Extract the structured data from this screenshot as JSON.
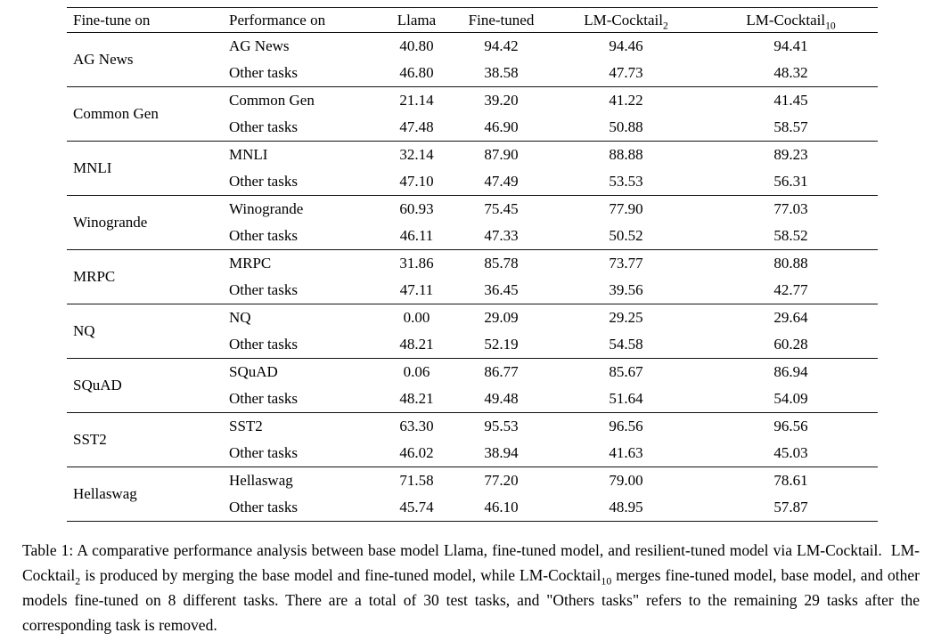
{
  "table": {
    "headers": [
      {
        "text": "Fine-tune on",
        "sub": ""
      },
      {
        "text": "Performance on",
        "sub": ""
      },
      {
        "text": "Llama",
        "sub": ""
      },
      {
        "text": "Fine-tuned",
        "sub": ""
      },
      {
        "text": "LM-Cocktail",
        "sub": "2"
      },
      {
        "text": "LM-Cocktail",
        "sub": "10"
      }
    ],
    "groups": [
      {
        "fine_tune_on": "AG News",
        "rows": [
          {
            "performance_on": "AG News",
            "values": [
              "40.80",
              "94.42",
              "94.46",
              "94.41"
            ]
          },
          {
            "performance_on": "Other tasks",
            "values": [
              "46.80",
              "38.58",
              "47.73",
              "48.32"
            ]
          }
        ]
      },
      {
        "fine_tune_on": "Common Gen",
        "rows": [
          {
            "performance_on": "Common Gen",
            "values": [
              "21.14",
              "39.20",
              "41.22",
              "41.45"
            ]
          },
          {
            "performance_on": "Other tasks",
            "values": [
              "47.48",
              "46.90",
              "50.88",
              "58.57"
            ]
          }
        ]
      },
      {
        "fine_tune_on": "MNLI",
        "rows": [
          {
            "performance_on": "MNLI",
            "values": [
              "32.14",
              "87.90",
              "88.88",
              "89.23"
            ]
          },
          {
            "performance_on": "Other tasks",
            "values": [
              "47.10",
              "47.49",
              "53.53",
              "56.31"
            ]
          }
        ]
      },
      {
        "fine_tune_on": "Winogrande",
        "rows": [
          {
            "performance_on": "Winogrande",
            "values": [
              "60.93",
              "75.45",
              "77.90",
              "77.03"
            ]
          },
          {
            "performance_on": "Other tasks",
            "values": [
              "46.11",
              "47.33",
              "50.52",
              "58.52"
            ]
          }
        ]
      },
      {
        "fine_tune_on": "MRPC",
        "rows": [
          {
            "performance_on": "MRPC",
            "values": [
              "31.86",
              "85.78",
              "73.77",
              "80.88"
            ]
          },
          {
            "performance_on": "Other tasks",
            "values": [
              "47.11",
              "36.45",
              "39.56",
              "42.77"
            ]
          }
        ]
      },
      {
        "fine_tune_on": "NQ",
        "rows": [
          {
            "performance_on": "NQ",
            "values": [
              "0.00",
              "29.09",
              "29.25",
              "29.64"
            ]
          },
          {
            "performance_on": "Other tasks",
            "values": [
              "48.21",
              "52.19",
              "54.58",
              "60.28"
            ]
          }
        ]
      },
      {
        "fine_tune_on": "SQuAD",
        "rows": [
          {
            "performance_on": "SQuAD",
            "values": [
              "0.06",
              "86.77",
              "85.67",
              "86.94"
            ]
          },
          {
            "performance_on": "Other tasks",
            "values": [
              "48.21",
              "49.48",
              "51.64",
              "54.09"
            ]
          }
        ]
      },
      {
        "fine_tune_on": "SST2",
        "rows": [
          {
            "performance_on": "SST2",
            "values": [
              "63.30",
              "95.53",
              "96.56",
              "96.56"
            ]
          },
          {
            "performance_on": "Other tasks",
            "values": [
              "46.02",
              "38.94",
              "41.63",
              "45.03"
            ]
          }
        ]
      },
      {
        "fine_tune_on": "Hellaswag",
        "rows": [
          {
            "performance_on": "Hellaswag",
            "values": [
              "71.58",
              "77.20",
              "79.00",
              "78.61"
            ]
          },
          {
            "performance_on": "Other tasks",
            "values": [
              "45.74",
              "46.10",
              "48.95",
              "57.87"
            ]
          }
        ]
      }
    ]
  },
  "caption": {
    "segments": [
      {
        "text": "Table 1: A comparative performance analysis between base model Llama, fine-tuned model, and resilient-tuned model via LM-Cocktail.  LM-Cocktail",
        "sub": false
      },
      {
        "text": "2",
        "sub": true
      },
      {
        "text": " is produced by merging the base model and fine-tuned model, while LM-Cocktail",
        "sub": false
      },
      {
        "text": "10",
        "sub": true
      },
      {
        "text": " merges fine-tuned model, base model, and other models fine-tuned on 8 different tasks. There are a total of 30 test tasks, and \"Others tasks\" refers to the remaining 29 tasks after the corresponding task is removed.",
        "sub": false
      }
    ]
  }
}
